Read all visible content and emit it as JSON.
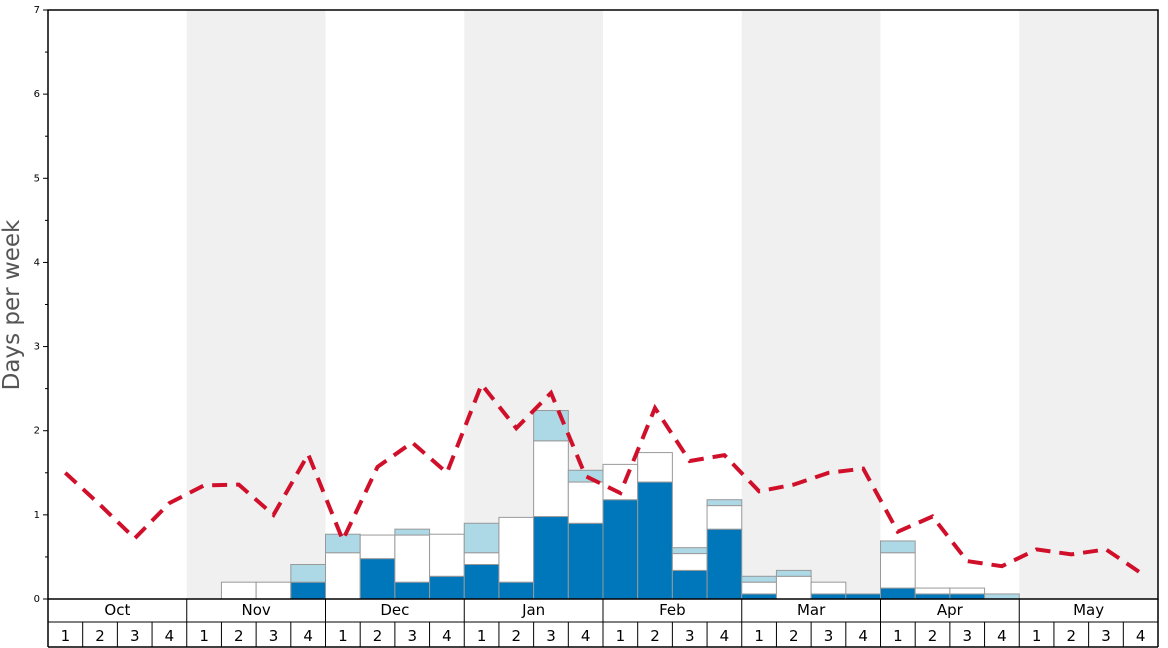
{
  "chart_data": {
    "type": "bar",
    "ylabel": "Days per week",
    "ylim": [
      0,
      7
    ],
    "y_ticks": [
      "0",
      "1",
      "2",
      "3",
      "4",
      "5",
      "6",
      "7"
    ],
    "months": [
      "Oct",
      "Nov",
      "Dec",
      "Jan",
      "Feb",
      "Mar",
      "Apr",
      "May"
    ],
    "week_labels": [
      "1",
      "2",
      "3",
      "4"
    ],
    "colors": {
      "dark": "#0077bb",
      "white": "#ffffff",
      "light": "#add8e6",
      "line": "#d0102a",
      "shade": "#f0f0f0",
      "bar_border": "#999999"
    },
    "series": [
      {
        "values": [
          0,
          0,
          0,
          0,
          0,
          0,
          0,
          0.2,
          0,
          0.48,
          0.2,
          0.27,
          0.41,
          0.2,
          0.98,
          0.9,
          1.18,
          1.39,
          0.34,
          0.83,
          0.06,
          0,
          0.06,
          0.06,
          0.13,
          0.06,
          0.06,
          0,
          0,
          0,
          0,
          0
        ]
      },
      {
        "values": [
          0,
          0,
          0,
          0,
          0,
          0.2,
          0.2,
          0,
          0.55,
          0.28,
          0.56,
          0.5,
          0.14,
          0.77,
          0.9,
          0.49,
          0.42,
          0.35,
          0.2,
          0.28,
          0.14,
          0.27,
          0.14,
          0,
          0.42,
          0.07,
          0.07,
          0,
          0,
          0,
          0,
          0
        ]
      },
      {
        "values": [
          0,
          0,
          0,
          0,
          0,
          0,
          0,
          0.21,
          0.22,
          0,
          0.07,
          0,
          0.35,
          0,
          0.36,
          0.14,
          0,
          0,
          0.07,
          0.07,
          0.07,
          0.07,
          0,
          0,
          0.14,
          0,
          0,
          0.06,
          0,
          0,
          0,
          0
        ]
      },
      {
        "values": [
          1.5,
          1.12,
          0.72,
          1.14,
          1.35,
          1.36,
          1.0,
          1.72,
          0.7,
          1.57,
          1.86,
          1.5,
          2.55,
          2.03,
          2.45,
          1.46,
          1.26,
          2.27,
          1.64,
          1.71,
          1.28,
          1.36,
          1.5,
          1.55,
          0.8,
          0.98,
          0.45,
          0.39,
          0.59,
          0.53,
          0.59,
          0.31
        ]
      }
    ]
  }
}
